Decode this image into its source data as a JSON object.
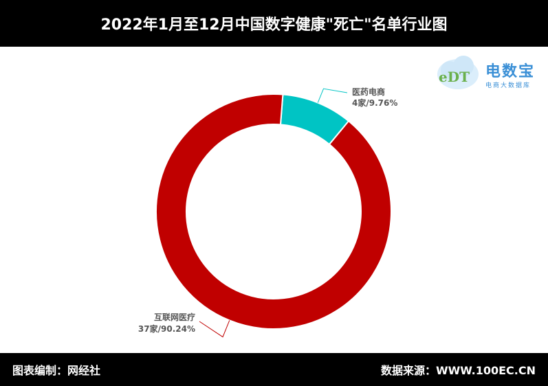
{
  "header": {
    "title": "2022年1月至12月中国数字健康\"死亡\"名单行业图"
  },
  "footer": {
    "left": "图表编制：网经社",
    "right": "数据来源：WWW.100EC.CN"
  },
  "logo": {
    "name": "电数宝",
    "sub": "电商大数据库",
    "mark": "eDT"
  },
  "colors": {
    "background": "#ffffff",
    "bar": "#000000",
    "primary": "#c00000",
    "secondary": "#00c4c4"
  },
  "chart_data": {
    "type": "pie",
    "donut": true,
    "title": "",
    "categories": [
      "医药电商",
      "互联网医疗"
    ],
    "values": [
      4,
      37
    ],
    "percentages": [
      9.76,
      90.24
    ],
    "labels": [
      {
        "name": "医药电商",
        "detail": "4家/9.76%"
      },
      {
        "name": "互联网医疗",
        "detail": "37家/90.24%"
      }
    ]
  }
}
